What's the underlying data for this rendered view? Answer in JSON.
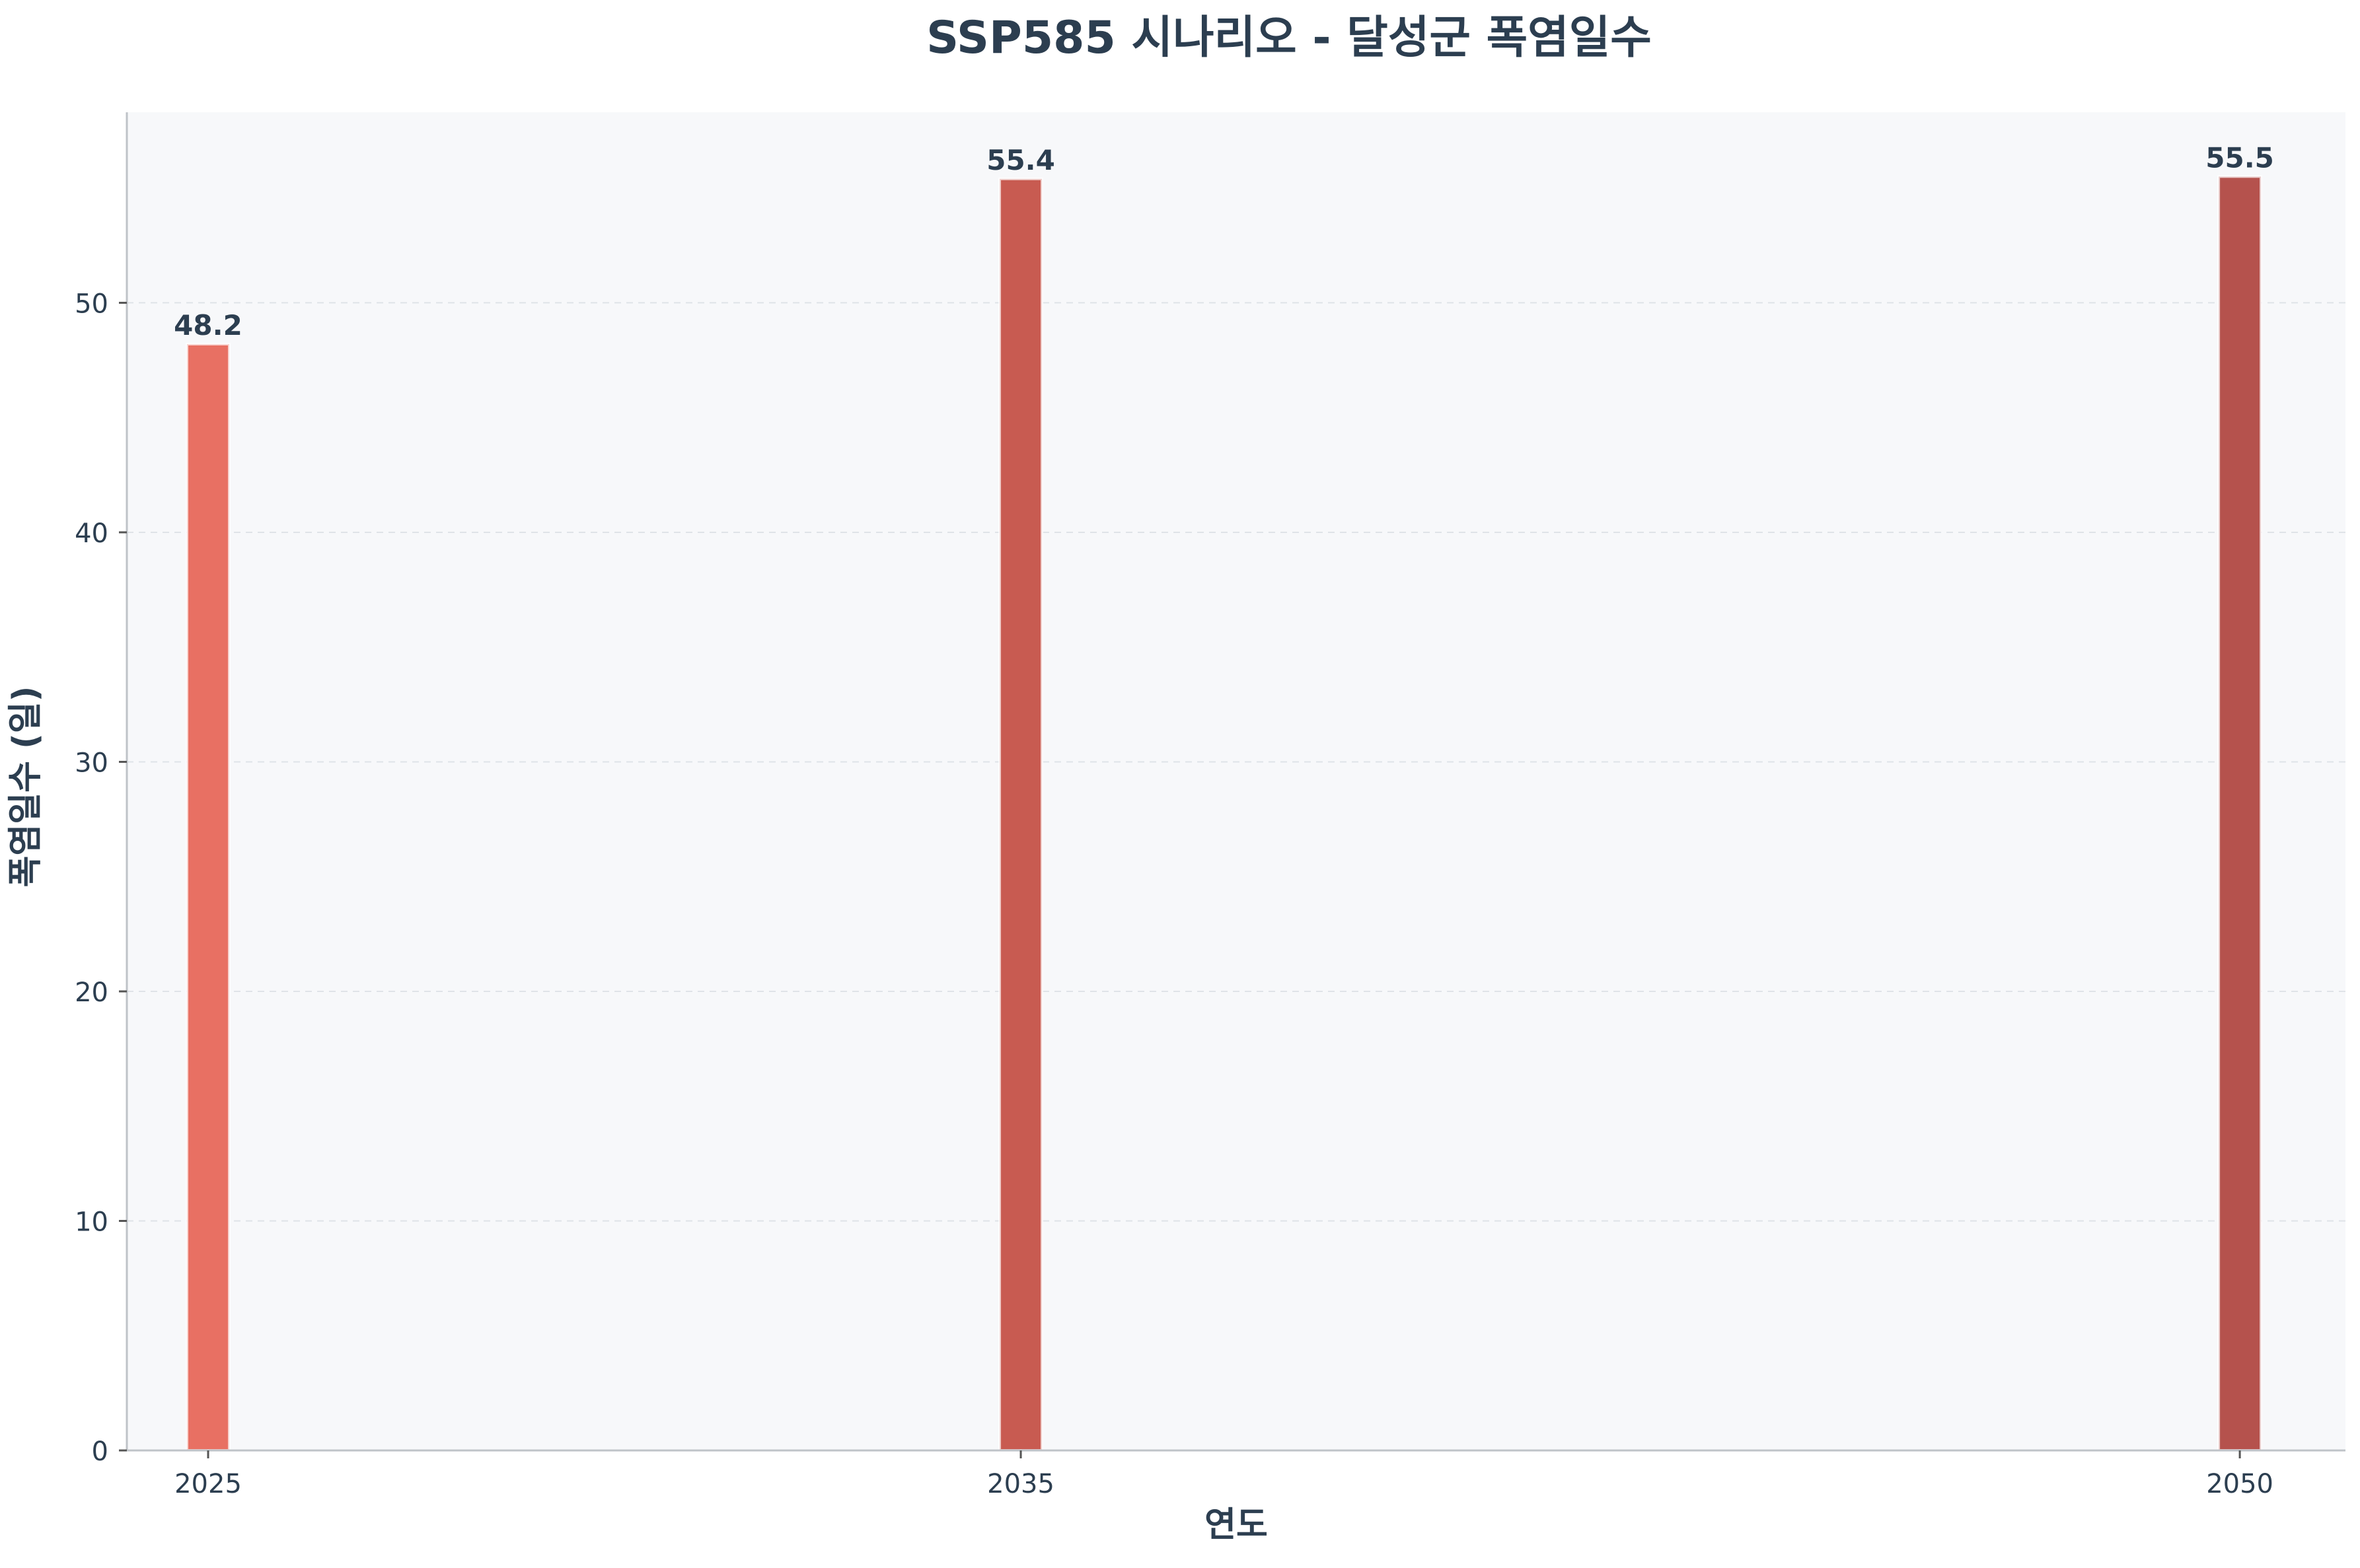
{
  "chart_data": {
    "type": "bar",
    "title": "SSP585 시나리오 - 달성군 폭염일수",
    "xlabel": "연도",
    "ylabel": "폭염일수 (일)",
    "categories": [
      "2025",
      "2035",
      "2050"
    ],
    "x": [
      2025,
      2035,
      2050
    ],
    "values": [
      48.2,
      55.4,
      55.5
    ],
    "value_labels": [
      "48.2",
      "55.4",
      "55.5"
    ],
    "ylim": [
      0,
      58.3
    ],
    "xlim": [
      2024.0,
      2051.3
    ],
    "yticks": [
      0,
      10,
      20,
      30,
      40,
      50
    ],
    "ytick_labels": [
      "0",
      "10",
      "20",
      "30",
      "40",
      "50"
    ],
    "grid": "horizontal dashed",
    "colors": {
      "bars": [
        "#e87063",
        "#c85b51",
        "#b5524d"
      ],
      "plot_background": "#f7f8fa",
      "text": "#2c3e50",
      "grid": "#dfe3e8",
      "axis": "#bfc3c8",
      "bar_edge": "#ffffff"
    }
  }
}
